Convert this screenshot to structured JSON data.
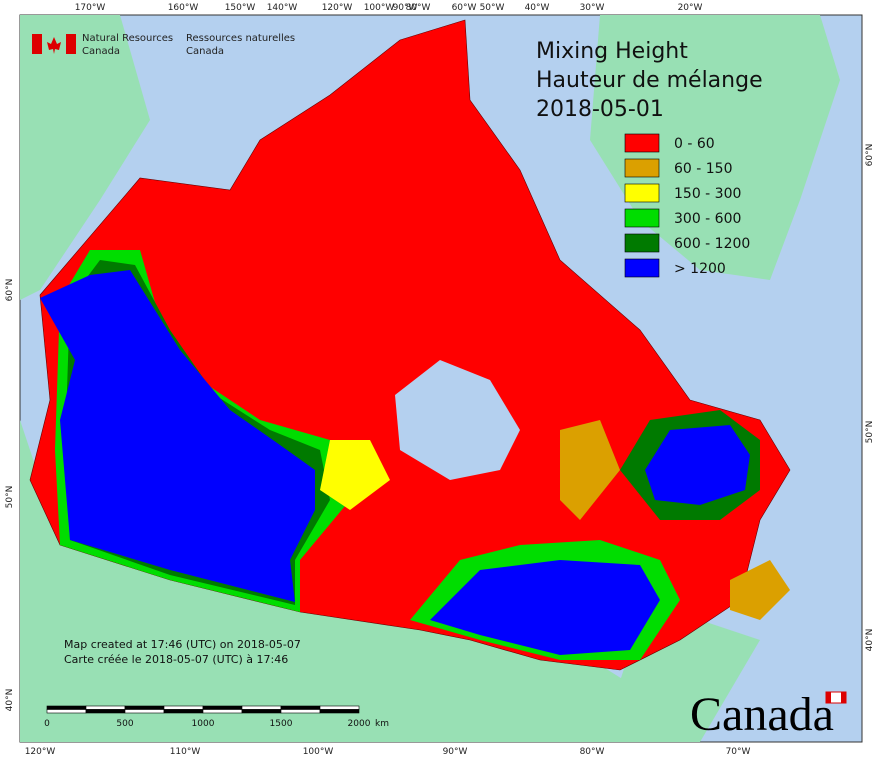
{
  "header": {
    "agency_en": [
      "Natural Resources",
      "Canada"
    ],
    "agency_fr": [
      "Ressources naturelles",
      "Canada"
    ]
  },
  "title": {
    "line1": "Mixing Height",
    "line2": "Hauteur de mélange",
    "date": "2018-05-01"
  },
  "legend": [
    {
      "label": "0 - 60",
      "color": "#ff0000"
    },
    {
      "label": "60 - 150",
      "color": "#dba000"
    },
    {
      "label": "150 - 300",
      "color": "#ffff00"
    },
    {
      "label": "300 - 600",
      "color": "#00dd00"
    },
    {
      "label": "600 - 1200",
      "color": "#007a00"
    },
    {
      "label": "> 1200",
      "color": "#0000ff"
    }
  ],
  "graticule": {
    "top": [
      "170°W",
      "160°W",
      "150°W",
      "140°W",
      "120°W",
      "100°W",
      "90°W",
      "80°W",
      "60°W",
      "50°W",
      "40°W",
      "30°W",
      "20°W"
    ],
    "bottom": [
      "120°W",
      "110°W",
      "100°W",
      "90°W",
      "80°W",
      "70°W"
    ],
    "left": [
      "60°N",
      "50°N",
      "40°N"
    ],
    "right": [
      "60°N",
      "50°N",
      "40°N"
    ]
  },
  "footer": {
    "created_en": "Map created at 17:46 (UTC) on 2018-05-07",
    "created_fr": "Carte créée le 2018-05-07 (UTC) à 17:46"
  },
  "scale": {
    "labels": [
      "0",
      "500",
      "1000",
      "1500",
      "2000"
    ],
    "unit": "km"
  },
  "wordmark": "Canada"
}
